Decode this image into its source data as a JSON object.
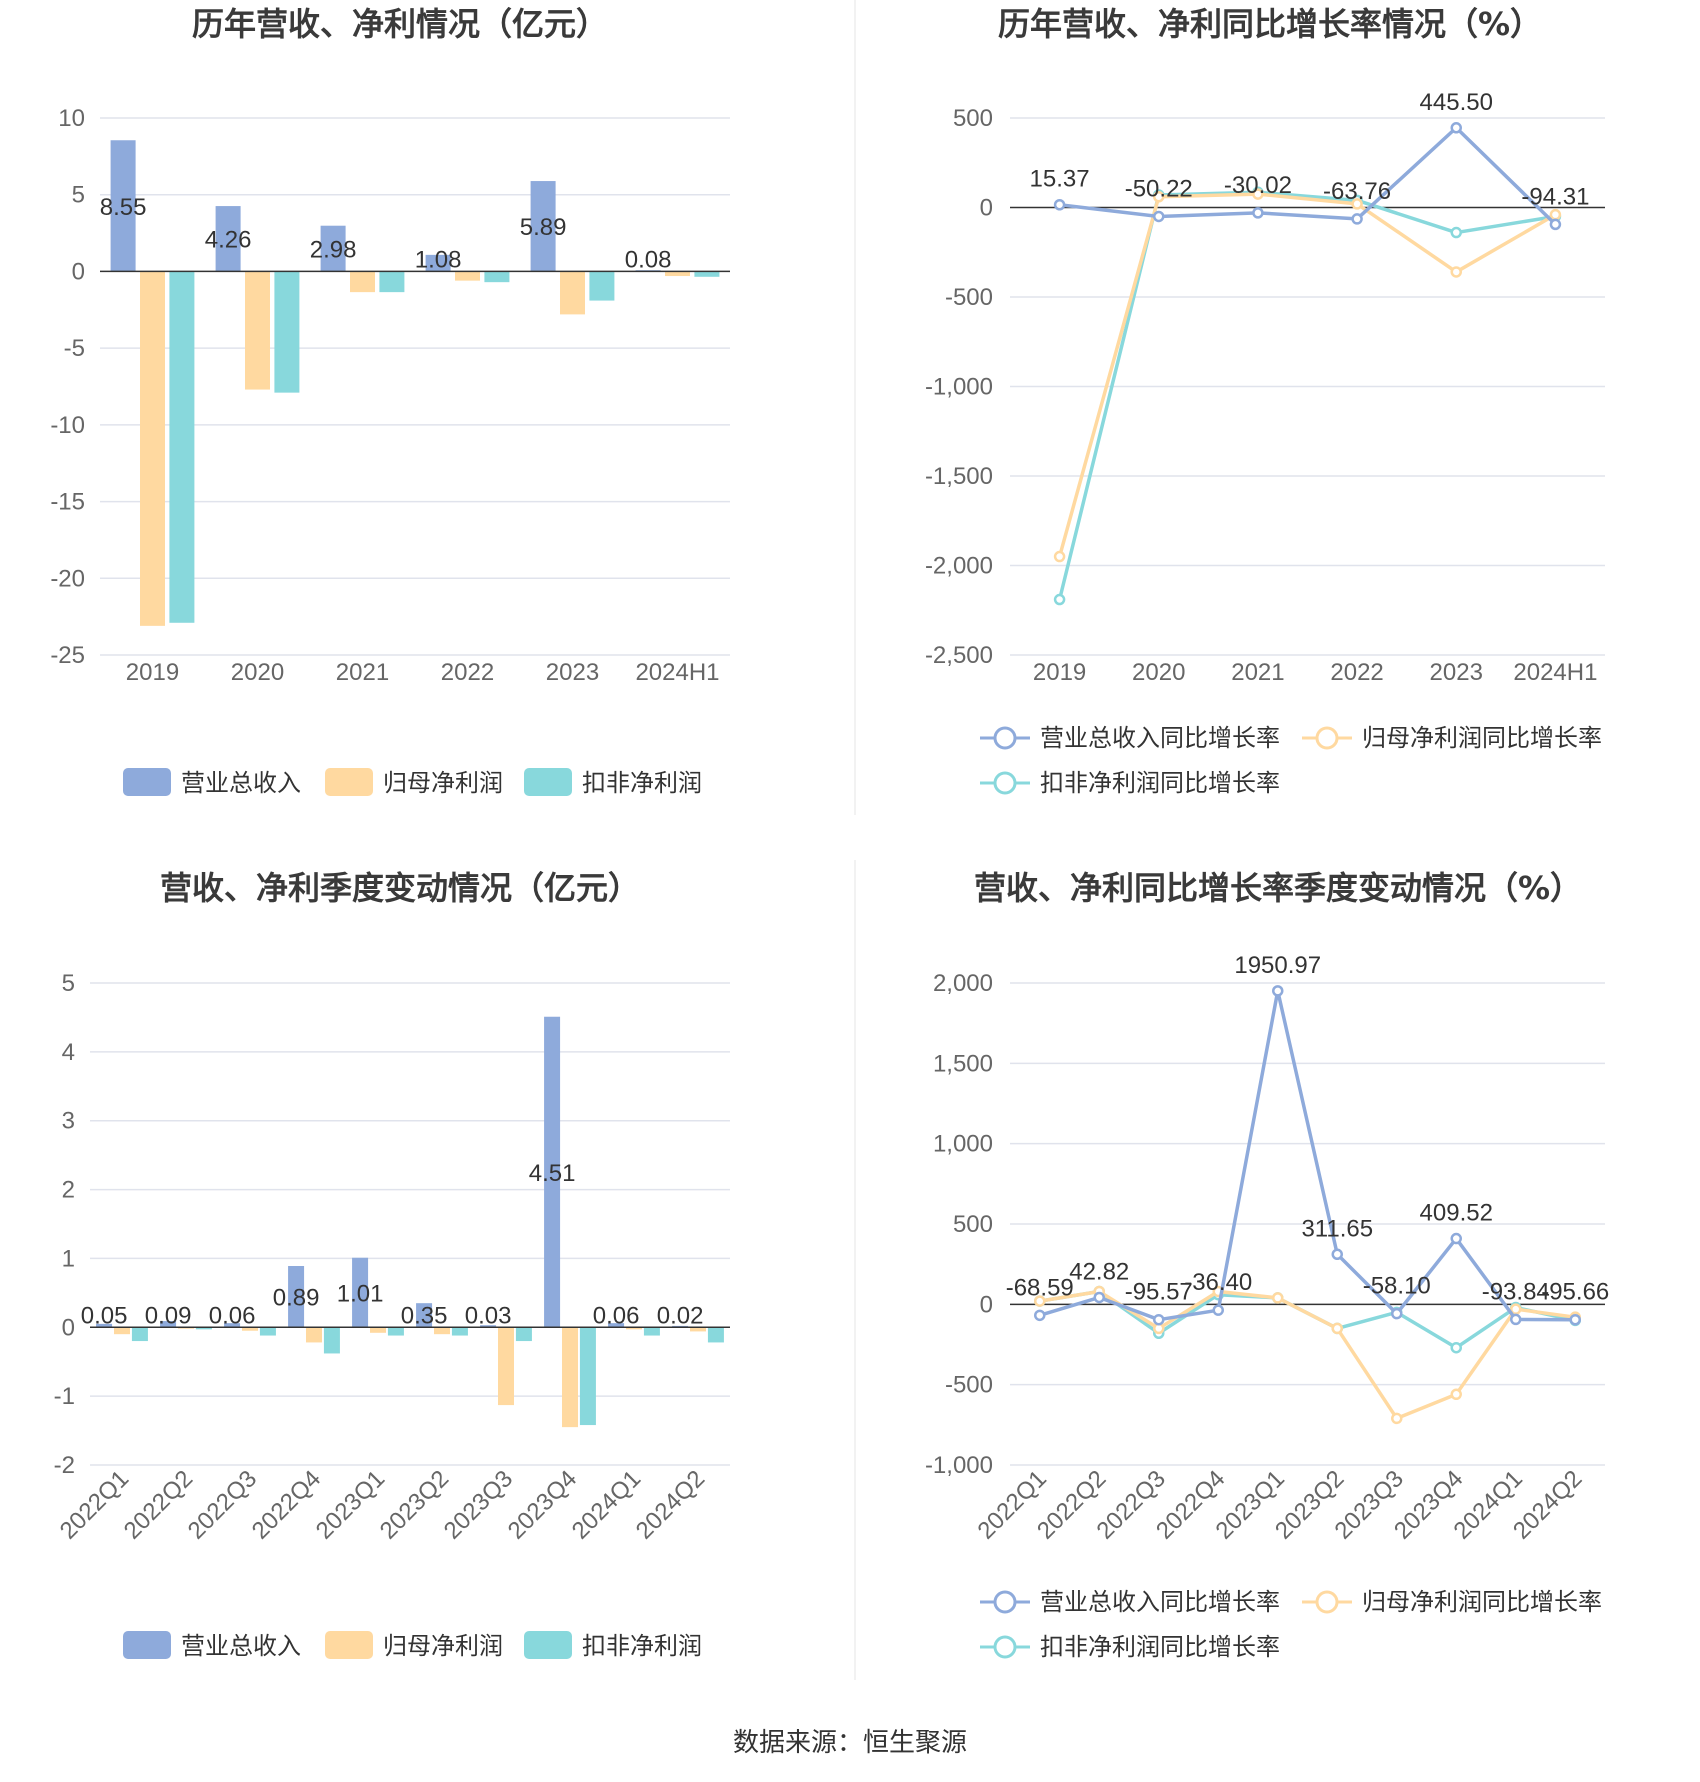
{
  "source_text": "数据来源：恒生聚源",
  "colors": {
    "revenue": "#8eaadb",
    "net_profit": "#ffd9a0",
    "deducted_profit": "#88d8dc",
    "grid": "#e0e3ec",
    "axis": "#333333",
    "divider": "#e6e6e6"
  },
  "chart_data": [
    {
      "type": "bar",
      "title": "历年营收、净利情况（亿元）",
      "categories": [
        "2019",
        "2020",
        "2021",
        "2022",
        "2023",
        "2024H1"
      ],
      "yticks": [
        10,
        5,
        0,
        -5,
        -10,
        -15,
        -20,
        -25
      ],
      "ylim": [
        -25,
        10
      ],
      "series": [
        {
          "name": "营业总收入",
          "values": [
            8.55,
            4.26,
            2.98,
            1.08,
            5.89,
            0.08
          ],
          "labels": [
            "8.55",
            "4.26",
            "2.98",
            "1.08",
            "5.89",
            "0.08"
          ]
        },
        {
          "name": "归母净利润",
          "values": [
            -23.1,
            -7.7,
            -1.35,
            -0.6,
            -2.8,
            -0.3
          ]
        },
        {
          "name": "扣非净利润",
          "values": [
            -22.9,
            -7.9,
            -1.35,
            -0.7,
            -1.9,
            -0.35
          ]
        }
      ],
      "legend_position": "bottom",
      "grid": true
    },
    {
      "type": "line",
      "title": "历年营收、净利同比增长率情况（%）",
      "categories": [
        "2019",
        "2020",
        "2021",
        "2022",
        "2023",
        "2024H1"
      ],
      "yticks": [
        500,
        0,
        -500,
        -1000,
        -1500,
        -2000,
        -2500
      ],
      "ytick_labels": [
        "500",
        "0",
        "-500",
        "-1,000",
        "-1,500",
        "-2,000",
        "-2,500"
      ],
      "ylim": [
        -2500,
        500
      ],
      "series": [
        {
          "name": "营业总收入同比增长率",
          "values": [
            15.37,
            -50.22,
            -30.02,
            -63.76,
            445.5,
            -94.31
          ],
          "labels": [
            "15.37",
            "-50.22",
            "-30.02",
            "-63.76",
            "445.50",
            "-94.31"
          ]
        },
        {
          "name": "归母净利润同比增长率",
          "values": [
            -1950,
            60,
            75,
            20,
            -360,
            -40
          ]
        },
        {
          "name": "扣非净利润同比增长率",
          "values": [
            -2190,
            70,
            85,
            40,
            -140,
            -50
          ]
        }
      ],
      "legend_position": "bottom",
      "grid": true
    },
    {
      "type": "bar",
      "title": "营收、净利季度变动情况（亿元）",
      "categories": [
        "2022Q1",
        "2022Q2",
        "2022Q3",
        "2022Q4",
        "2023Q1",
        "2023Q2",
        "2023Q3",
        "2023Q4",
        "2024Q1",
        "2024Q2"
      ],
      "yticks": [
        5,
        4,
        3,
        2,
        1,
        0,
        -1,
        -2
      ],
      "ylim": [
        -2,
        5
      ],
      "series": [
        {
          "name": "营业总收入",
          "values": [
            0.05,
            0.09,
            0.06,
            0.89,
            1.01,
            0.35,
            0.03,
            4.51,
            0.06,
            0.02
          ],
          "labels": [
            "0.05",
            "0.09",
            "0.06",
            "0.89",
            "1.01",
            "0.35",
            "0.03",
            "4.51",
            "0.06",
            "0.02"
          ]
        },
        {
          "name": "归母净利润",
          "values": [
            -0.1,
            -0.02,
            -0.05,
            -0.22,
            -0.08,
            -0.1,
            -1.13,
            -1.45,
            -0.03,
            -0.06
          ]
        },
        {
          "name": "扣非净利润",
          "values": [
            -0.2,
            -0.03,
            -0.12,
            -0.38,
            -0.12,
            -0.12,
            -0.2,
            -1.42,
            -0.12,
            -0.22
          ]
        }
      ],
      "legend_position": "bottom",
      "grid": true
    },
    {
      "type": "line",
      "title": "营收、净利同比增长率季度变动情况（%）",
      "categories": [
        "2022Q1",
        "2022Q2",
        "2022Q3",
        "2022Q4",
        "2023Q1",
        "2023Q2",
        "2023Q3",
        "2023Q4",
        "2024Q1",
        "2024Q2"
      ],
      "yticks": [
        2000,
        1500,
        1000,
        500,
        0,
        -500,
        -1000
      ],
      "ytick_labels": [
        "2,000",
        "1,500",
        "1,000",
        "500",
        "0",
        "-500",
        "-1,000"
      ],
      "ylim": [
        -1000,
        2000
      ],
      "series": [
        {
          "name": "营业总收入同比增长率",
          "values": [
            -68.59,
            42.82,
            -95.57,
            -36.4,
            1950.97,
            311.65,
            -58.1,
            409.52,
            -93.84,
            -95.66
          ],
          "labels": [
            "-68.59",
            "42.82",
            "-95.57",
            "-36.40",
            "1950.97",
            "311.65",
            "-58.10",
            "409.52",
            "-93.84",
            "-95.66"
          ]
        },
        {
          "name": "归母净利润同比增长率",
          "values": [
            20,
            80,
            -150,
            80,
            40,
            -150,
            -710,
            -560,
            -30,
            -80
          ]
        },
        {
          "name": "扣非净利润同比增长率",
          "values": [
            20,
            80,
            -180,
            60,
            40,
            -150,
            -50,
            -270,
            -20,
            -100
          ]
        }
      ],
      "legend_position": "bottom",
      "grid": true
    }
  ]
}
